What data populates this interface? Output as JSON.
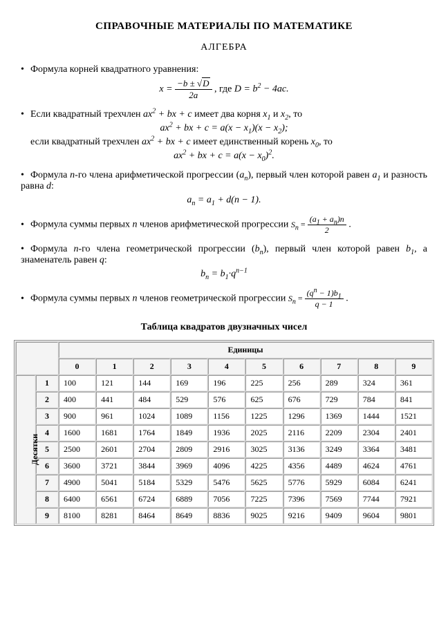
{
  "title": "СПРАВОЧНЫЕ МАТЕРИАЛЫ ПО МАТЕМАТИКЕ",
  "section": "АЛГЕБРА",
  "bullets": {
    "b1": "Формула корней квадратного уравнения:",
    "b2_a": "Если квадратный трехчлен ",
    "b2_b": " имеет два корня  ",
    "b2_c": " и ",
    "b2_d": ", то",
    "b2_line2a": "если квадратный трехчлен ",
    "b2_line2b": " имеет единственный корень  ",
    "b2_line2c": ", то",
    "b3_a": "Формула ",
    "b3_b": "-го члена арифметической прогрессии (",
    "b3_c": "), первый член которой равен ",
    "b3_d": " и разность равна ",
    "b3_e": ":",
    "b4": "Формула суммы первых ",
    "b4_b": " членов арифметической прогрессии  ",
    "b5_a": "Формула ",
    "b5_b": "-го члена геометрической прогрессии (",
    "b5_c": "), первый член которой равен ",
    "b5_d": ", а знаменатель равен ",
    "b5_e": ":",
    "b6_a": "Формула суммы первых ",
    "b6_b": " членов геометрической прогрессии  "
  },
  "formulas": {
    "f1_pre": "x = ",
    "f1_num_a": "−b ± ",
    "f1_num_rad": "√",
    "f1_num_D": "D",
    "f1_den": "2a",
    "f1_post_a": ", где ",
    "f1_post_b": "D = b",
    "f1_post_c": " − 4ac.",
    "f2_a": "ax",
    "f2_b": " + bx + c = a(x − x",
    "f2_c": ")(x − x",
    "f2_d": ");",
    "f3_a": "ax",
    "f3_b": " + bx + c = a(x − x",
    "f3_c": ")",
    "f3_d": ".",
    "f4_a": "a",
    "f4_b": " = a",
    "f4_c": " + d(n − 1).",
    "sn": "S",
    "sn_eq": " = ",
    "f5_num_a": "(a",
    "f5_num_b": " + a",
    "f5_num_c": ")n",
    "f5_den": "2",
    "f5_dot": " .",
    "f6_a": "b",
    "f6_b": " = b",
    "f6_c": "·q",
    "f7_num_a": "(q",
    "f7_num_b": " − 1)b",
    "f7_den": "q − 1",
    "trinom": "ax",
    "trinom_b": " + bx + c",
    "x1": "x",
    "x2": "x",
    "x0": "x",
    "n": "n",
    "an": "a",
    "a1": "a",
    "d": "d",
    "bn": "b",
    "b1": "b",
    "q": "q"
  },
  "table": {
    "title": "Таблица квадратов двузначных чисел",
    "col_header": "Единицы",
    "row_header": "Десятки",
    "cols": [
      "0",
      "1",
      "2",
      "3",
      "4",
      "5",
      "6",
      "7",
      "8",
      "9"
    ],
    "rows": [
      {
        "label": "1",
        "vals": [
          "100",
          "121",
          "144",
          "169",
          "196",
          "225",
          "256",
          "289",
          "324",
          "361"
        ]
      },
      {
        "label": "2",
        "vals": [
          "400",
          "441",
          "484",
          "529",
          "576",
          "625",
          "676",
          "729",
          "784",
          "841"
        ]
      },
      {
        "label": "3",
        "vals": [
          "900",
          "961",
          "1024",
          "1089",
          "1156",
          "1225",
          "1296",
          "1369",
          "1444",
          "1521"
        ]
      },
      {
        "label": "4",
        "vals": [
          "1600",
          "1681",
          "1764",
          "1849",
          "1936",
          "2025",
          "2116",
          "2209",
          "2304",
          "2401"
        ]
      },
      {
        "label": "5",
        "vals": [
          "2500",
          "2601",
          "2704",
          "2809",
          "2916",
          "3025",
          "3136",
          "3249",
          "3364",
          "3481"
        ]
      },
      {
        "label": "6",
        "vals": [
          "3600",
          "3721",
          "3844",
          "3969",
          "4096",
          "4225",
          "4356",
          "4489",
          "4624",
          "4761"
        ]
      },
      {
        "label": "7",
        "vals": [
          "4900",
          "5041",
          "5184",
          "5329",
          "5476",
          "5625",
          "5776",
          "5929",
          "6084",
          "6241"
        ]
      },
      {
        "label": "8",
        "vals": [
          "6400",
          "6561",
          "6724",
          "6889",
          "7056",
          "7225",
          "7396",
          "7569",
          "7744",
          "7921"
        ]
      },
      {
        "label": "9",
        "vals": [
          "8100",
          "8281",
          "8464",
          "8649",
          "8836",
          "9025",
          "9216",
          "9409",
          "9604",
          "9801"
        ]
      }
    ]
  }
}
